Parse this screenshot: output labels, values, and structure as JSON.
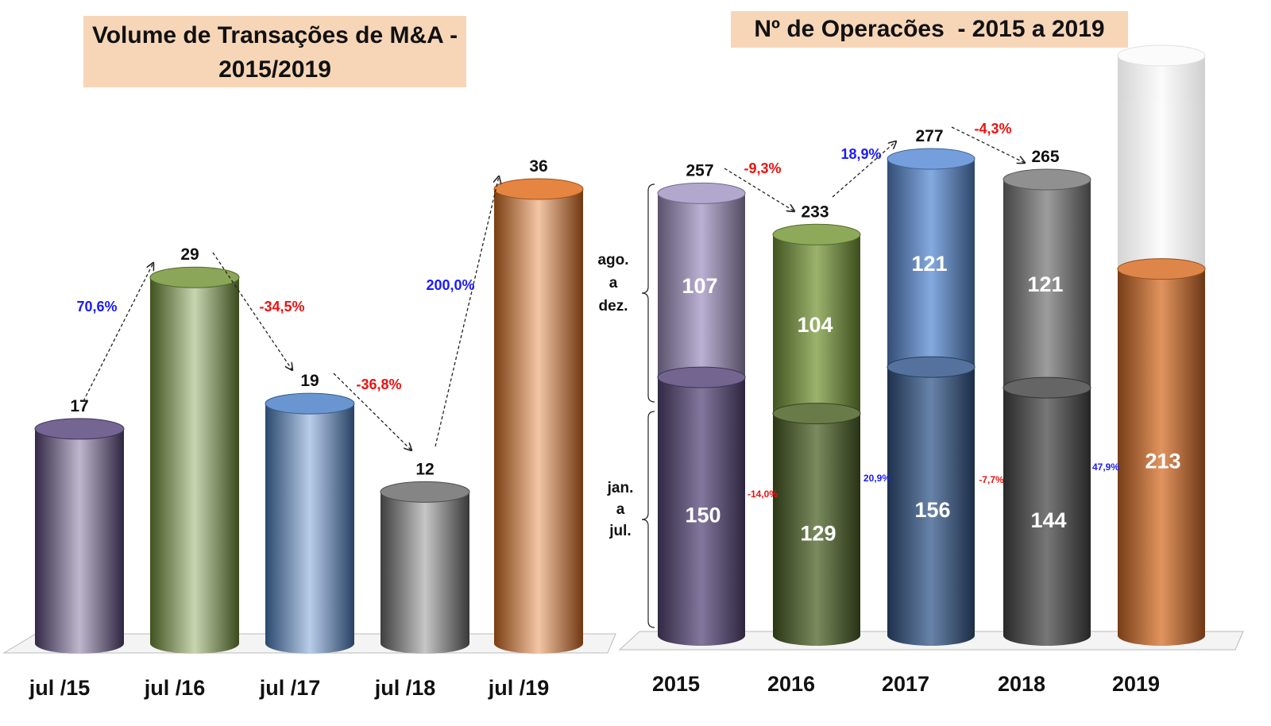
{
  "chart_data": [
    {
      "type": "bar",
      "title": "Volume de Transações de M&A - 2015/2019",
      "categories": [
        "jul /15",
        "jul /16",
        "jul /17",
        "jul /18",
        "jul /19"
      ],
      "values": [
        17,
        29,
        19,
        12,
        36
      ],
      "value_labels": [
        "17",
        "29",
        "19",
        "12",
        "36"
      ],
      "changes": [
        "70,6%",
        "-34,5%",
        "-36,8%",
        "200,0%"
      ],
      "colors": [
        "#5c4a80",
        "#76963a",
        "#4f82c8",
        "#707070",
        "#e07020"
      ],
      "xlabel": "",
      "ylabel": "",
      "ylim": [
        0,
        38
      ],
      "grid": false,
      "legend": "none"
    },
    {
      "type": "bar",
      "stacked": true,
      "title": "Nº de Operacões  - 2015 a 2019",
      "categories": [
        "2015",
        "2016",
        "2017",
        "2018",
        "2019"
      ],
      "series": [
        {
          "name": "jan. a jul.",
          "values": [
            150,
            129,
            156,
            144,
            213
          ],
          "labels": [
            "150",
            "129",
            "156",
            "144",
            "213"
          ]
        },
        {
          "name": "ago. a dez.",
          "values": [
            107,
            104,
            121,
            121,
            null
          ],
          "labels": [
            "107",
            "104",
            "121",
            "121",
            ""
          ]
        }
      ],
      "totals": [
        "257",
        "233",
        "277",
        "265"
      ],
      "total_changes": [
        "-9,3%",
        "18,9%",
        "-4,3%"
      ],
      "jan_jul_changes": [
        "-14,0%",
        "20,9%",
        "-7,7%",
        "47,9%"
      ],
      "bracket_labels": {
        "upper": [
          "ago.",
          "a",
          "dez."
        ],
        "lower": [
          "jan.",
          "a",
          "jul."
        ]
      },
      "colors_bottom": [
        "#5a4a7c",
        "#4e6428",
        "#36598c",
        "#4a4a4a",
        "#d8702a"
      ],
      "colors_top": [
        "#a497c4",
        "#7a9a3c",
        "#5c8ed6",
        "#7c7c7c"
      ],
      "ylim": [
        0,
        280
      ],
      "grid": false,
      "legend": "none"
    }
  ],
  "positive_color": "#1a1aff",
  "negative_color": "#ee1111"
}
